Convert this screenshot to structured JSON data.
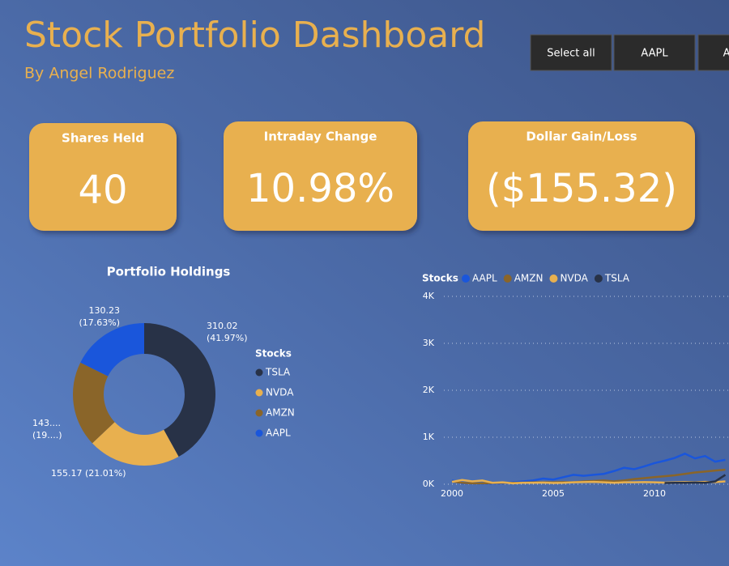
{
  "header": {
    "title": "Stock Portfolio Dashboard",
    "subtitle": "By Angel Rodriguez"
  },
  "slicers": [
    "Select all",
    "AAPL",
    "AMZN"
  ],
  "cards": [
    {
      "label": "Shares Held",
      "value": "40"
    },
    {
      "label": "Intraday Change",
      "value": "10.98%"
    },
    {
      "label": "Dollar Gain/Loss",
      "value": "($155.32)"
    }
  ],
  "chart_data": [
    {
      "type": "donut",
      "title": "Portfolio Holdings",
      "legend_title": "Stocks",
      "categories": [
        "TSLA",
        "NVDA",
        "AMZN",
        "AAPL"
      ],
      "colors": [
        "#283247",
        "#e8b04f",
        "#8a6529",
        "#1a56db"
      ],
      "values": [
        310.02,
        155.17,
        143.25,
        130.23
      ],
      "value_labels": [
        "310.02",
        "155.17",
        "143....",
        "130.23"
      ],
      "percent_labels": [
        "(41.97%)",
        "(21.01%)",
        "(19....)",
        "(17.63%)"
      ]
    },
    {
      "type": "line",
      "legend_title": "Stocks",
      "x": [
        2000,
        2000.5,
        2001,
        2001.5,
        2002,
        2002.5,
        2003,
        2003.5,
        2004,
        2004.5,
        2005,
        2005.5,
        2006,
        2006.5,
        2007,
        2007.5,
        2008,
        2008.5,
        2009,
        2009.5,
        2010,
        2010.5,
        2011,
        2011.5,
        2012,
        2012.5,
        2013,
        2013.5
      ],
      "series": [
        {
          "name": "AAPL",
          "color": "#1a56db",
          "values": [
            80,
            20,
            20,
            15,
            15,
            20,
            40,
            60,
            80,
            120,
            100,
            150,
            200,
            180,
            200,
            220,
            280,
            350,
            320,
            380,
            450,
            500,
            560,
            650,
            550,
            600,
            480,
            520
          ]
        },
        {
          "name": "AMZN",
          "color": "#8a6529",
          "values": [
            60,
            30,
            20,
            20,
            25,
            30,
            30,
            35,
            40,
            40,
            40,
            45,
            40,
            60,
            70,
            80,
            60,
            80,
            110,
            130,
            150,
            170,
            190,
            220,
            250,
            270,
            290,
            310
          ]
        },
        {
          "name": "NVDA",
          "color": "#e8b04f",
          "values": [
            50,
            90,
            60,
            80,
            30,
            40,
            20,
            30,
            30,
            35,
            25,
            30,
            40,
            45,
            50,
            40,
            30,
            40,
            40,
            45,
            40,
            35,
            40,
            45,
            40,
            50,
            45,
            60
          ]
        },
        {
          "name": "TSLA",
          "color": "#283247",
          "values": [
            null,
            null,
            null,
            null,
            null,
            null,
            null,
            null,
            null,
            null,
            null,
            null,
            null,
            null,
            null,
            null,
            null,
            null,
            null,
            null,
            null,
            25,
            30,
            30,
            35,
            30,
            60,
            200
          ]
        }
      ],
      "xlim": [
        1999.6,
        2013.68
      ],
      "xticks": [
        2000,
        2005,
        2010
      ],
      "ylim": [
        0,
        4000
      ],
      "yticks": [
        {
          "value": 0,
          "label": "0K"
        },
        {
          "value": 1000,
          "label": "1K"
        },
        {
          "value": 2000,
          "label": "2K"
        },
        {
          "value": 3000,
          "label": "3K"
        },
        {
          "value": 4000,
          "label": "4K"
        }
      ],
      "grid": true
    }
  ]
}
